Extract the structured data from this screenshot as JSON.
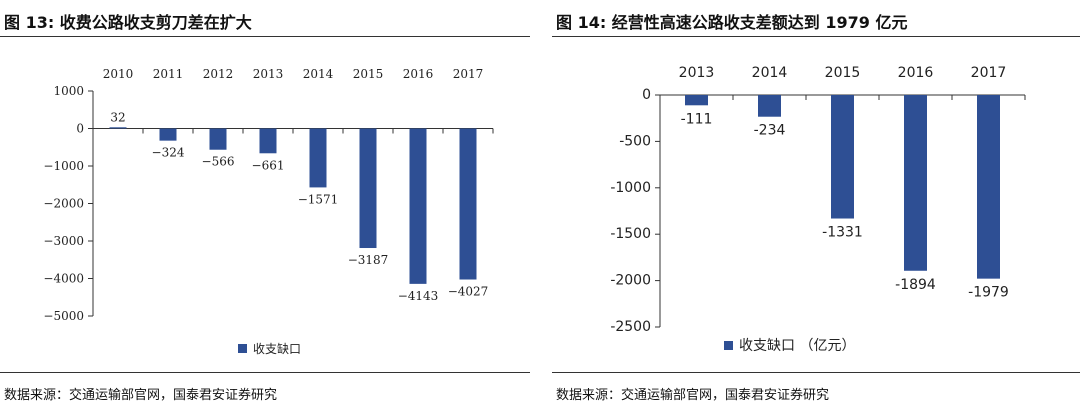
{
  "figures": [
    {
      "title": "图 13:  收费公路收支剪刀差在扩大",
      "source": "数据来源：交通运输部官网，国泰君安证券研究"
    },
    {
      "title": "图 14:  经营性高速公路收支差额达到 1979 亿元",
      "source": "数据来源：交通运输部官网，国泰君安证券研究"
    }
  ],
  "colors": {
    "bar": "#2e4f94",
    "axis": "#333333"
  },
  "chart_data": [
    {
      "type": "bar",
      "title": "图 13:  收费公路收支剪刀差在扩大",
      "categories": [
        "2010",
        "2011",
        "2012",
        "2013",
        "2014",
        "2015",
        "2016",
        "2017"
      ],
      "series": [
        {
          "name": "收支缺口",
          "values": [
            32,
            -324,
            -566,
            -661,
            -1571,
            -3187,
            -4143,
            -4027
          ],
          "labels": [
            "32",
            "−324",
            "−566",
            "−661",
            "−1571",
            "−3187",
            "−4143",
            "−4027"
          ]
        }
      ],
      "yticks": [
        1000,
        0,
        -1000,
        -2000,
        -3000,
        -4000,
        -5000
      ],
      "ytick_labels": [
        "1000",
        "0",
        "−1000",
        "−2000",
        "−3000",
        "−4000",
        "−5000"
      ],
      "ylim": [
        -5000,
        1000
      ],
      "xaxis_position": "top",
      "grid": false,
      "legend": "bottom-left"
    },
    {
      "type": "bar",
      "title": "图 14:  经营性高速公路收支差额达到 1979 亿元",
      "categories": [
        "2013",
        "2014",
        "2015",
        "2016",
        "2017"
      ],
      "series": [
        {
          "name": "收支缺口（亿元）",
          "values": [
            -111,
            -234,
            -1331,
            -1894,
            -1979
          ],
          "labels": [
            "-111",
            "-234",
            "-1331",
            "-1894",
            "-1979"
          ]
        }
      ],
      "yticks": [
        0,
        -500,
        -1000,
        -1500,
        -2000,
        -2500
      ],
      "ytick_labels": [
        "0",
        "-500",
        "-1000",
        "-1500",
        "-2000",
        "-2500"
      ],
      "ylim": [
        -2500,
        0
      ],
      "xaxis_position": "top",
      "grid": false,
      "legend": "bottom-center",
      "legend_label": "收支缺口  （亿元）"
    }
  ]
}
